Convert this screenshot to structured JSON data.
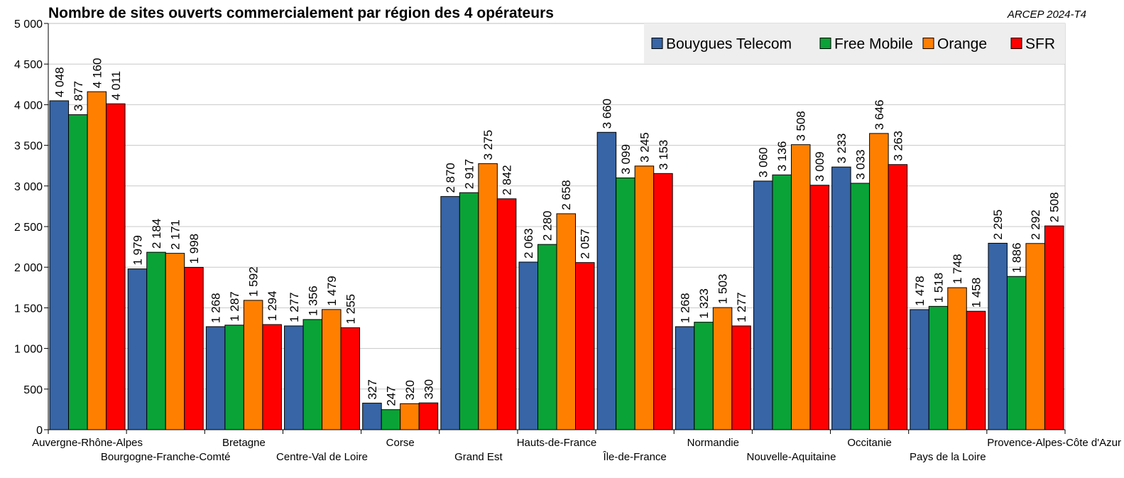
{
  "chart_data": {
    "type": "bar",
    "title": "Nombre de sites ouverts commercialement par région des 4 opérateurs",
    "source": "ARCEP 2024-T4",
    "categories": [
      "Auvergne-Rhône-Alpes",
      "Bourgogne-Franche-Comté",
      "Bretagne",
      "Centre-Val de Loire",
      "Corse",
      "Grand Est",
      "Hauts-de-France",
      "Île-de-France",
      "Normandie",
      "Nouvelle-Aquitaine",
      "Occitanie",
      "Pays de la Loire",
      "Provence-Alpes-Côte d'Azur"
    ],
    "series": [
      {
        "name": "Bouygues Telecom",
        "color": "#3765a6",
        "values": [
          4048,
          1979,
          1268,
          1277,
          327,
          2870,
          2063,
          3660,
          1268,
          3060,
          3233,
          1478,
          2295
        ],
        "labels": [
          "4 048",
          "1 979",
          "1 268",
          "1 277",
          "327",
          "2 870",
          "2 063",
          "3 660",
          "1 268",
          "3 060",
          "3 233",
          "1 478",
          "2 295"
        ]
      },
      {
        "name": "Free Mobile",
        "color": "#0aa337",
        "values": [
          3877,
          2184,
          1287,
          1356,
          247,
          2917,
          2280,
          3099,
          1323,
          3136,
          3033,
          1518,
          1886
        ],
        "labels": [
          "3 877",
          "2 184",
          "1 287",
          "1 356",
          "247",
          "2 917",
          "2 280",
          "3 099",
          "1 323",
          "3 136",
          "3 033",
          "1 518",
          "1 886"
        ]
      },
      {
        "name": "Orange",
        "color": "#ff8000",
        "values": [
          4160,
          2171,
          1592,
          1479,
          320,
          3275,
          2658,
          3245,
          1503,
          3508,
          3646,
          1748,
          2292
        ],
        "labels": [
          "4 160",
          "2 171",
          "1 592",
          "1 479",
          "320",
          "3 275",
          "2 658",
          "3 245",
          "1 503",
          "3 508",
          "3 646",
          "1 748",
          "2 292"
        ]
      },
      {
        "name": "SFR",
        "color": "#ff0000",
        "values": [
          4011,
          1998,
          1294,
          1255,
          330,
          2842,
          2057,
          3153,
          1277,
          3009,
          3263,
          1458,
          2508
        ],
        "labels": [
          "4 011",
          "1 998",
          "1 294",
          "1 255",
          "330",
          "2 842",
          "2 057",
          "3 153",
          "1 277",
          "3 009",
          "3 263",
          "1 458",
          "2 508"
        ]
      }
    ],
    "ylim": [
      0,
      5000
    ],
    "yticks": [
      0,
      500,
      1000,
      1500,
      2000,
      2500,
      3000,
      3500,
      4000,
      4500,
      5000
    ],
    "ytick_labels": [
      "0",
      "500",
      "1 000",
      "1 500",
      "2 000",
      "2 500",
      "3 000",
      "3 500",
      "4 000",
      "4 500",
      "5 000"
    ],
    "grid": true,
    "legend_position": "top-right"
  }
}
